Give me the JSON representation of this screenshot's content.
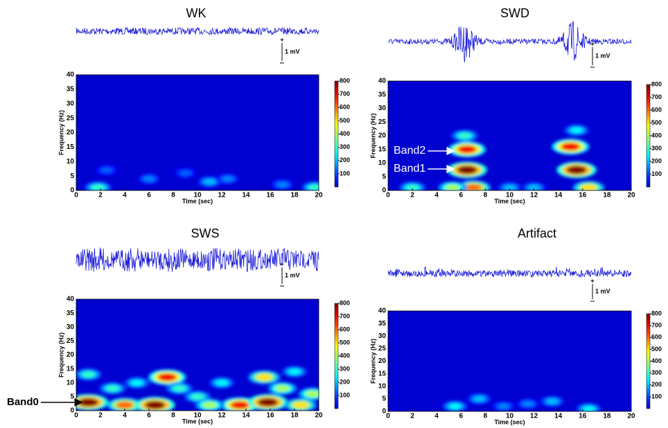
{
  "chart_data": [
    {
      "type": "heatmap",
      "title": "WK",
      "xlabel": "Time (sec)",
      "ylabel": "Frequency (Hz)",
      "scale_bar": "1 mV",
      "xlim": [
        0,
        20
      ],
      "xticks": [
        0,
        2,
        4,
        6,
        8,
        10,
        12,
        14,
        16,
        18,
        20
      ],
      "ylim": [
        0,
        40
      ],
      "yticks": [
        0,
        5,
        10,
        15,
        20,
        25,
        30,
        35,
        40
      ],
      "clim": [
        0,
        800
      ],
      "cticks": [
        100,
        200,
        300,
        400,
        500,
        600,
        700,
        800
      ],
      "annotations": [],
      "cells": [
        {
          "x": 1.8,
          "y": 1,
          "value": 300
        },
        {
          "x": 6,
          "y": 4,
          "value": 150
        },
        {
          "x": 11,
          "y": 3,
          "value": 200
        },
        {
          "x": 12.5,
          "y": 4,
          "value": 150
        },
        {
          "x": 17,
          "y": 2,
          "value": 150
        },
        {
          "x": 19.7,
          "y": 1,
          "value": 300
        },
        {
          "x": 2.5,
          "y": 7,
          "value": 120
        },
        {
          "x": 9,
          "y": 6,
          "value": 120
        }
      ]
    },
    {
      "type": "heatmap",
      "title": "SWD",
      "xlabel": "Time (sec)",
      "ylabel": "Frequency (Hz)",
      "scale_bar": "1 mV",
      "xlim": [
        0,
        20
      ],
      "xticks": [
        0,
        2,
        4,
        6,
        8,
        10,
        12,
        14,
        16,
        18,
        20
      ],
      "ylim": [
        0,
        40
      ],
      "yticks": [
        0,
        5,
        10,
        15,
        20,
        25,
        30,
        35,
        40
      ],
      "clim": [
        0,
        800
      ],
      "cticks": [
        100,
        200,
        300,
        400,
        500,
        600,
        700,
        800
      ],
      "annotations": [
        "Band2",
        "Band1"
      ],
      "cells": [
        {
          "x": 6.5,
          "y": 7.5,
          "value": 800
        },
        {
          "x": 15.5,
          "y": 7.5,
          "value": 800
        },
        {
          "x": 6.5,
          "y": 15,
          "value": 700
        },
        {
          "x": 15,
          "y": 16,
          "value": 700
        },
        {
          "x": 6.3,
          "y": 20,
          "value": 300
        },
        {
          "x": 15.5,
          "y": 22,
          "value": 250
        },
        {
          "x": 7,
          "y": 1,
          "value": 600
        },
        {
          "x": 2,
          "y": 1,
          "value": 300
        },
        {
          "x": 16.5,
          "y": 1,
          "value": 500
        },
        {
          "x": 12,
          "y": 1,
          "value": 200
        },
        {
          "x": 10,
          "y": 1,
          "value": 200
        },
        {
          "x": 5.3,
          "y": 1,
          "value": 400
        }
      ]
    },
    {
      "type": "heatmap",
      "title": "SWS",
      "xlabel": "Time (sec)",
      "ylabel": "Frequency (Hz)",
      "scale_bar": "1 mV",
      "xlim": [
        0,
        20
      ],
      "xticks": [
        0,
        2,
        4,
        6,
        8,
        10,
        12,
        14,
        16,
        18,
        20
      ],
      "ylim": [
        0,
        40
      ],
      "yticks": [
        0,
        5,
        10,
        15,
        20,
        25,
        30,
        35,
        40
      ],
      "clim": [
        0,
        800
      ],
      "cticks": [
        100,
        200,
        300,
        400,
        500,
        600,
        700,
        800
      ],
      "annotations": [
        "Band0"
      ],
      "cells": [
        {
          "x": 1,
          "y": 3,
          "value": 800
        },
        {
          "x": 4,
          "y": 2,
          "value": 600
        },
        {
          "x": 6.5,
          "y": 2,
          "value": 800
        },
        {
          "x": 7.5,
          "y": 12,
          "value": 700
        },
        {
          "x": 13.5,
          "y": 2,
          "value": 700
        },
        {
          "x": 15.8,
          "y": 3,
          "value": 800
        },
        {
          "x": 15.5,
          "y": 12,
          "value": 500
        },
        {
          "x": 3,
          "y": 8,
          "value": 300
        },
        {
          "x": 10,
          "y": 5,
          "value": 300
        },
        {
          "x": 12,
          "y": 10,
          "value": 250
        },
        {
          "x": 17,
          "y": 8,
          "value": 400
        },
        {
          "x": 19.5,
          "y": 6,
          "value": 400
        },
        {
          "x": 1,
          "y": 13,
          "value": 300
        },
        {
          "x": 8.5,
          "y": 8,
          "value": 300
        },
        {
          "x": 18,
          "y": 14,
          "value": 250
        },
        {
          "x": 11,
          "y": 2,
          "value": 400
        },
        {
          "x": 18.5,
          "y": 2,
          "value": 500
        },
        {
          "x": 5,
          "y": 10,
          "value": 250
        }
      ]
    },
    {
      "type": "heatmap",
      "title": "Artifact",
      "xlabel": "Time (sec)",
      "ylabel": "Frequency (Hz)",
      "scale_bar": "1 mV",
      "xlim": [
        0,
        20
      ],
      "xticks": [
        0,
        2,
        4,
        6,
        8,
        10,
        12,
        14,
        16,
        18,
        20
      ],
      "ylim": [
        0,
        40
      ],
      "yticks": [
        0,
        5,
        10,
        15,
        20,
        25,
        30,
        35,
        40
      ],
      "clim": [
        0,
        800
      ],
      "cticks": [
        100,
        200,
        300,
        400,
        500,
        600,
        700,
        800
      ],
      "annotations": [],
      "cells": [
        {
          "x": 5.5,
          "y": 2,
          "value": 250
        },
        {
          "x": 7.5,
          "y": 5,
          "value": 200
        },
        {
          "x": 9.5,
          "y": 2,
          "value": 150
        },
        {
          "x": 13.5,
          "y": 4,
          "value": 200
        },
        {
          "x": 16.5,
          "y": 1,
          "value": 250
        },
        {
          "x": 11.5,
          "y": 3,
          "value": 150
        }
      ]
    }
  ]
}
